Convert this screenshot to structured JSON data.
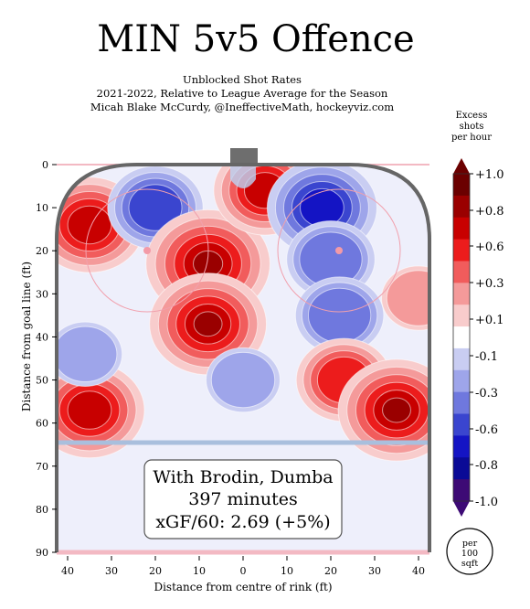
{
  "chart_data": {
    "type": "heatmap",
    "title": "MIN 5v5 Offence",
    "subtitle_lines": [
      "Unblocked Shot Rates",
      "2021-2022, Relative to League Average for the Season",
      "Micah Blake McCurdy, @IneffectiveMath, hockeyviz.com"
    ],
    "xlabel": "Distance from centre of rink (ft)",
    "ylabel": "Distance from goal line (ft)",
    "x_ticks": [
      "40",
      "30",
      "20",
      "10",
      "0",
      "10",
      "20",
      "30",
      "40"
    ],
    "y_ticks": [
      "0",
      "10",
      "20",
      "30",
      "40",
      "50",
      "60",
      "70",
      "80",
      "90"
    ],
    "xlim": [
      -42.5,
      42.5
    ],
    "ylim": [
      0,
      90
    ],
    "colorbar": {
      "title": [
        "Excess",
        "shots",
        "per hour"
      ],
      "ticks": [
        "+1.0",
        "+0.8",
        "+0.6",
        "+0.3",
        "+0.1",
        "-0.1",
        "-0.3",
        "-0.6",
        "-0.8",
        "-1.0"
      ],
      "colors": [
        "#6b0000",
        "#9a0000",
        "#c80000",
        "#ec1c1c",
        "#f15c5c",
        "#f49a9a",
        "#f8cccc",
        "#ffffff",
        "#c9cdf2",
        "#9ea5ea",
        "#6f78de",
        "#3a45cf",
        "#1414c4",
        "#0a0a96",
        "#3d0a75"
      ],
      "unit_badge": [
        "per",
        "100",
        "sqft"
      ]
    },
    "info_box": [
      "With Brodin, Dumba",
      "397 minutes",
      "xGF/60: 2.69 (+5%)"
    ],
    "hotspots": [
      {
        "x": 35,
        "y": 14,
        "value": 0.8
      },
      {
        "x": 20,
        "y": 10,
        "value": -0.6
      },
      {
        "x": 8,
        "y": 23,
        "value": 1.0
      },
      {
        "x": 8,
        "y": 37,
        "value": 0.9
      },
      {
        "x": -5,
        "y": 6,
        "value": 0.7
      },
      {
        "x": -18,
        "y": 10,
        "value": -0.8
      },
      {
        "x": -20,
        "y": 22,
        "value": -0.5
      },
      {
        "x": -22,
        "y": 35,
        "value": -0.5
      },
      {
        "x": 35,
        "y": 57,
        "value": 0.8
      },
      {
        "x": -23,
        "y": 50,
        "value": 0.6
      },
      {
        "x": -35,
        "y": 57,
        "value": 0.9
      },
      {
        "x": 36,
        "y": 44,
        "value": -0.3
      },
      {
        "x": -40,
        "y": 31,
        "value": 0.3
      },
      {
        "x": 0,
        "y": 50,
        "value": -0.3
      }
    ]
  }
}
